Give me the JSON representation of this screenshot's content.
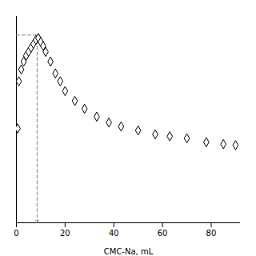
{
  "chart_data": {
    "type": "scatter",
    "xlabel": "CMC-Na, mL",
    "x": [
      0.5,
      1.0,
      2.0,
      3.0,
      4.0,
      5.0,
      6.0,
      7.0,
      8.0,
      9.0,
      10.0,
      11.0,
      12.0,
      14.0,
      16.0,
      18.0,
      20.0,
      24.0,
      28.0,
      33.0,
      38.0,
      43.0,
      50.0,
      57.0,
      63.0,
      70.0,
      78.0,
      85.0,
      90.0
    ],
    "values": [
      0.48,
      0.72,
      0.78,
      0.82,
      0.85,
      0.87,
      0.89,
      0.91,
      0.93,
      0.94,
      0.92,
      0.9,
      0.87,
      0.82,
      0.76,
      0.72,
      0.67,
      0.62,
      0.58,
      0.54,
      0.51,
      0.49,
      0.47,
      0.45,
      0.44,
      0.43,
      0.41,
      0.4,
      0.395
    ],
    "color": "black",
    "marker": "diamond",
    "xlim": [
      0,
      92
    ],
    "ylim": [
      0,
      1.05
    ],
    "xticks": [
      0,
      20,
      40,
      60,
      80
    ],
    "tick_labels": "x",
    "grid": false,
    "guide": {
      "x": 8.5,
      "y_top": 0.955,
      "y_bottom": 0.0,
      "line_style": "dashed",
      "color": "gray"
    }
  }
}
